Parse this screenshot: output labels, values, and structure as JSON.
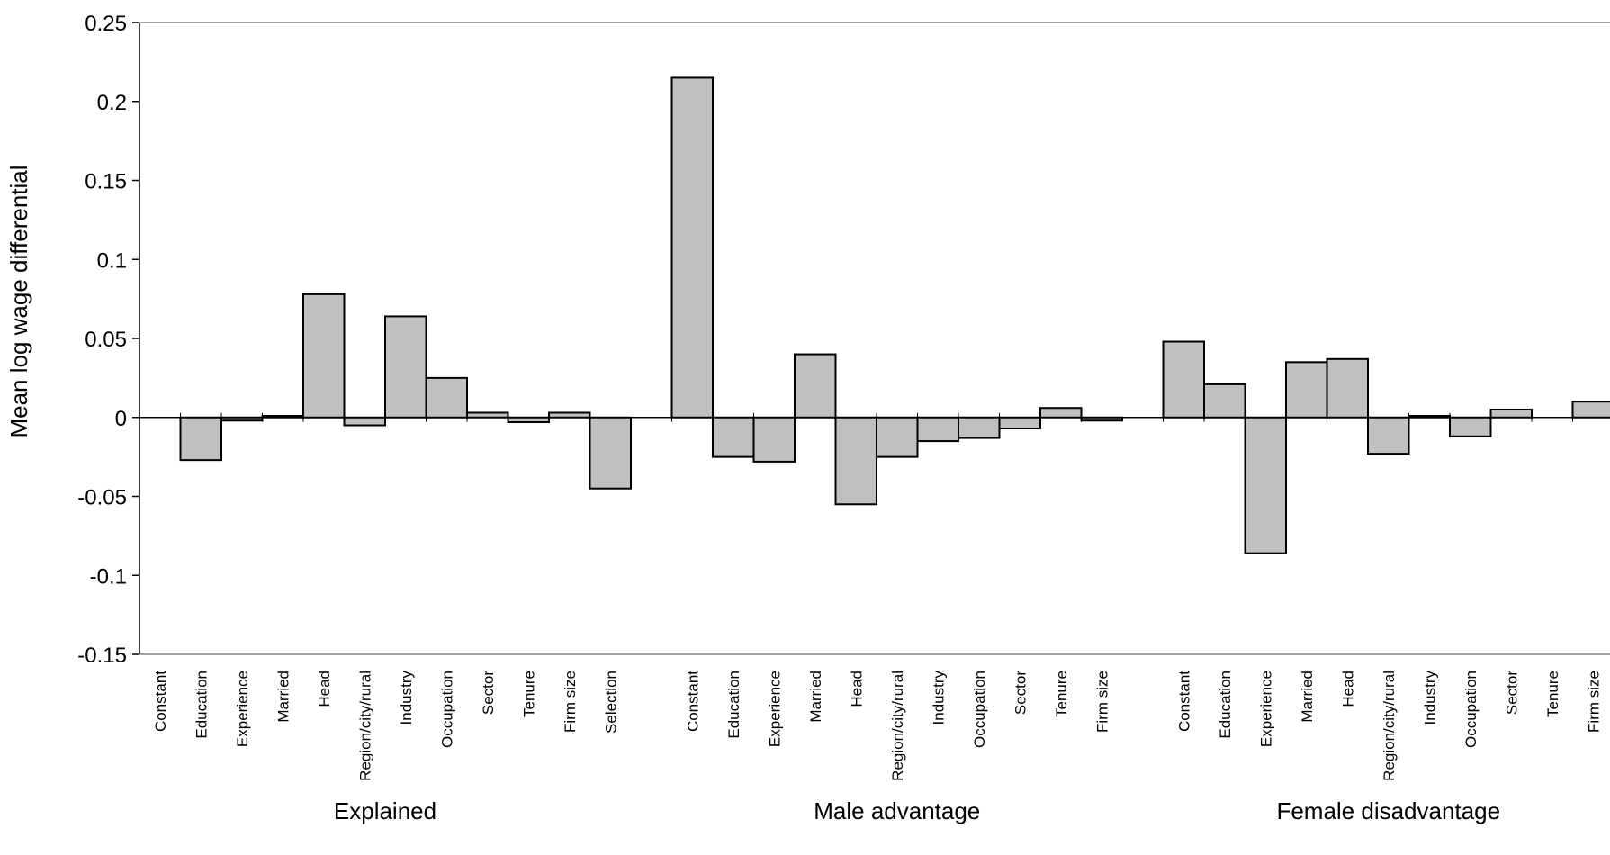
{
  "chart_data": {
    "type": "bar",
    "ylabel": "Mean log wage differential",
    "ylim": [
      -0.15,
      0.25
    ],
    "yticks": [
      "0.25",
      "0.2",
      "0.15",
      "0.1",
      "0.05",
      "0",
      "-0.05",
      "-0.1",
      "-0.15"
    ],
    "yticks_values": [
      0.25,
      0.2,
      0.15,
      0.1,
      0.05,
      0,
      -0.05,
      -0.1,
      -0.15
    ],
    "bar_color": "#c0c0c0",
    "edge_color": "#000000",
    "grid": false,
    "groups": [
      {
        "name": "Explained",
        "categories": [
          "Constant",
          "Education",
          "Experience",
          "Married",
          "Head",
          "Region/city/rural",
          "Industry",
          "Occupation",
          "Sector",
          "Tenure",
          "Firm size",
          "Selection"
        ],
        "values": [
          0.0,
          -0.027,
          -0.002,
          0.001,
          0.078,
          -0.005,
          0.064,
          0.025,
          0.003,
          -0.003,
          0.003,
          -0.045
        ]
      },
      {
        "name": "Male advantage",
        "categories": [
          "Constant",
          "Education",
          "Experience",
          "Married",
          "Head",
          "Region/city/rural",
          "Industry",
          "Occupation",
          "Sector",
          "Tenure",
          "Firm size"
        ],
        "values": [
          0.215,
          -0.025,
          -0.028,
          0.04,
          -0.055,
          -0.025,
          -0.015,
          -0.013,
          -0.007,
          0.006,
          -0.002
        ]
      },
      {
        "name": "Female disadvantage",
        "categories": [
          "Constant",
          "Education",
          "Experience",
          "Married",
          "Head",
          "Region/city/rural",
          "Industry",
          "Occupation",
          "Sector",
          "Tenure",
          "Firm size"
        ],
        "values": [
          0.048,
          0.021,
          -0.086,
          0.035,
          0.037,
          -0.023,
          0.001,
          -0.012,
          0.005,
          0.0,
          0.01
        ]
      }
    ]
  }
}
